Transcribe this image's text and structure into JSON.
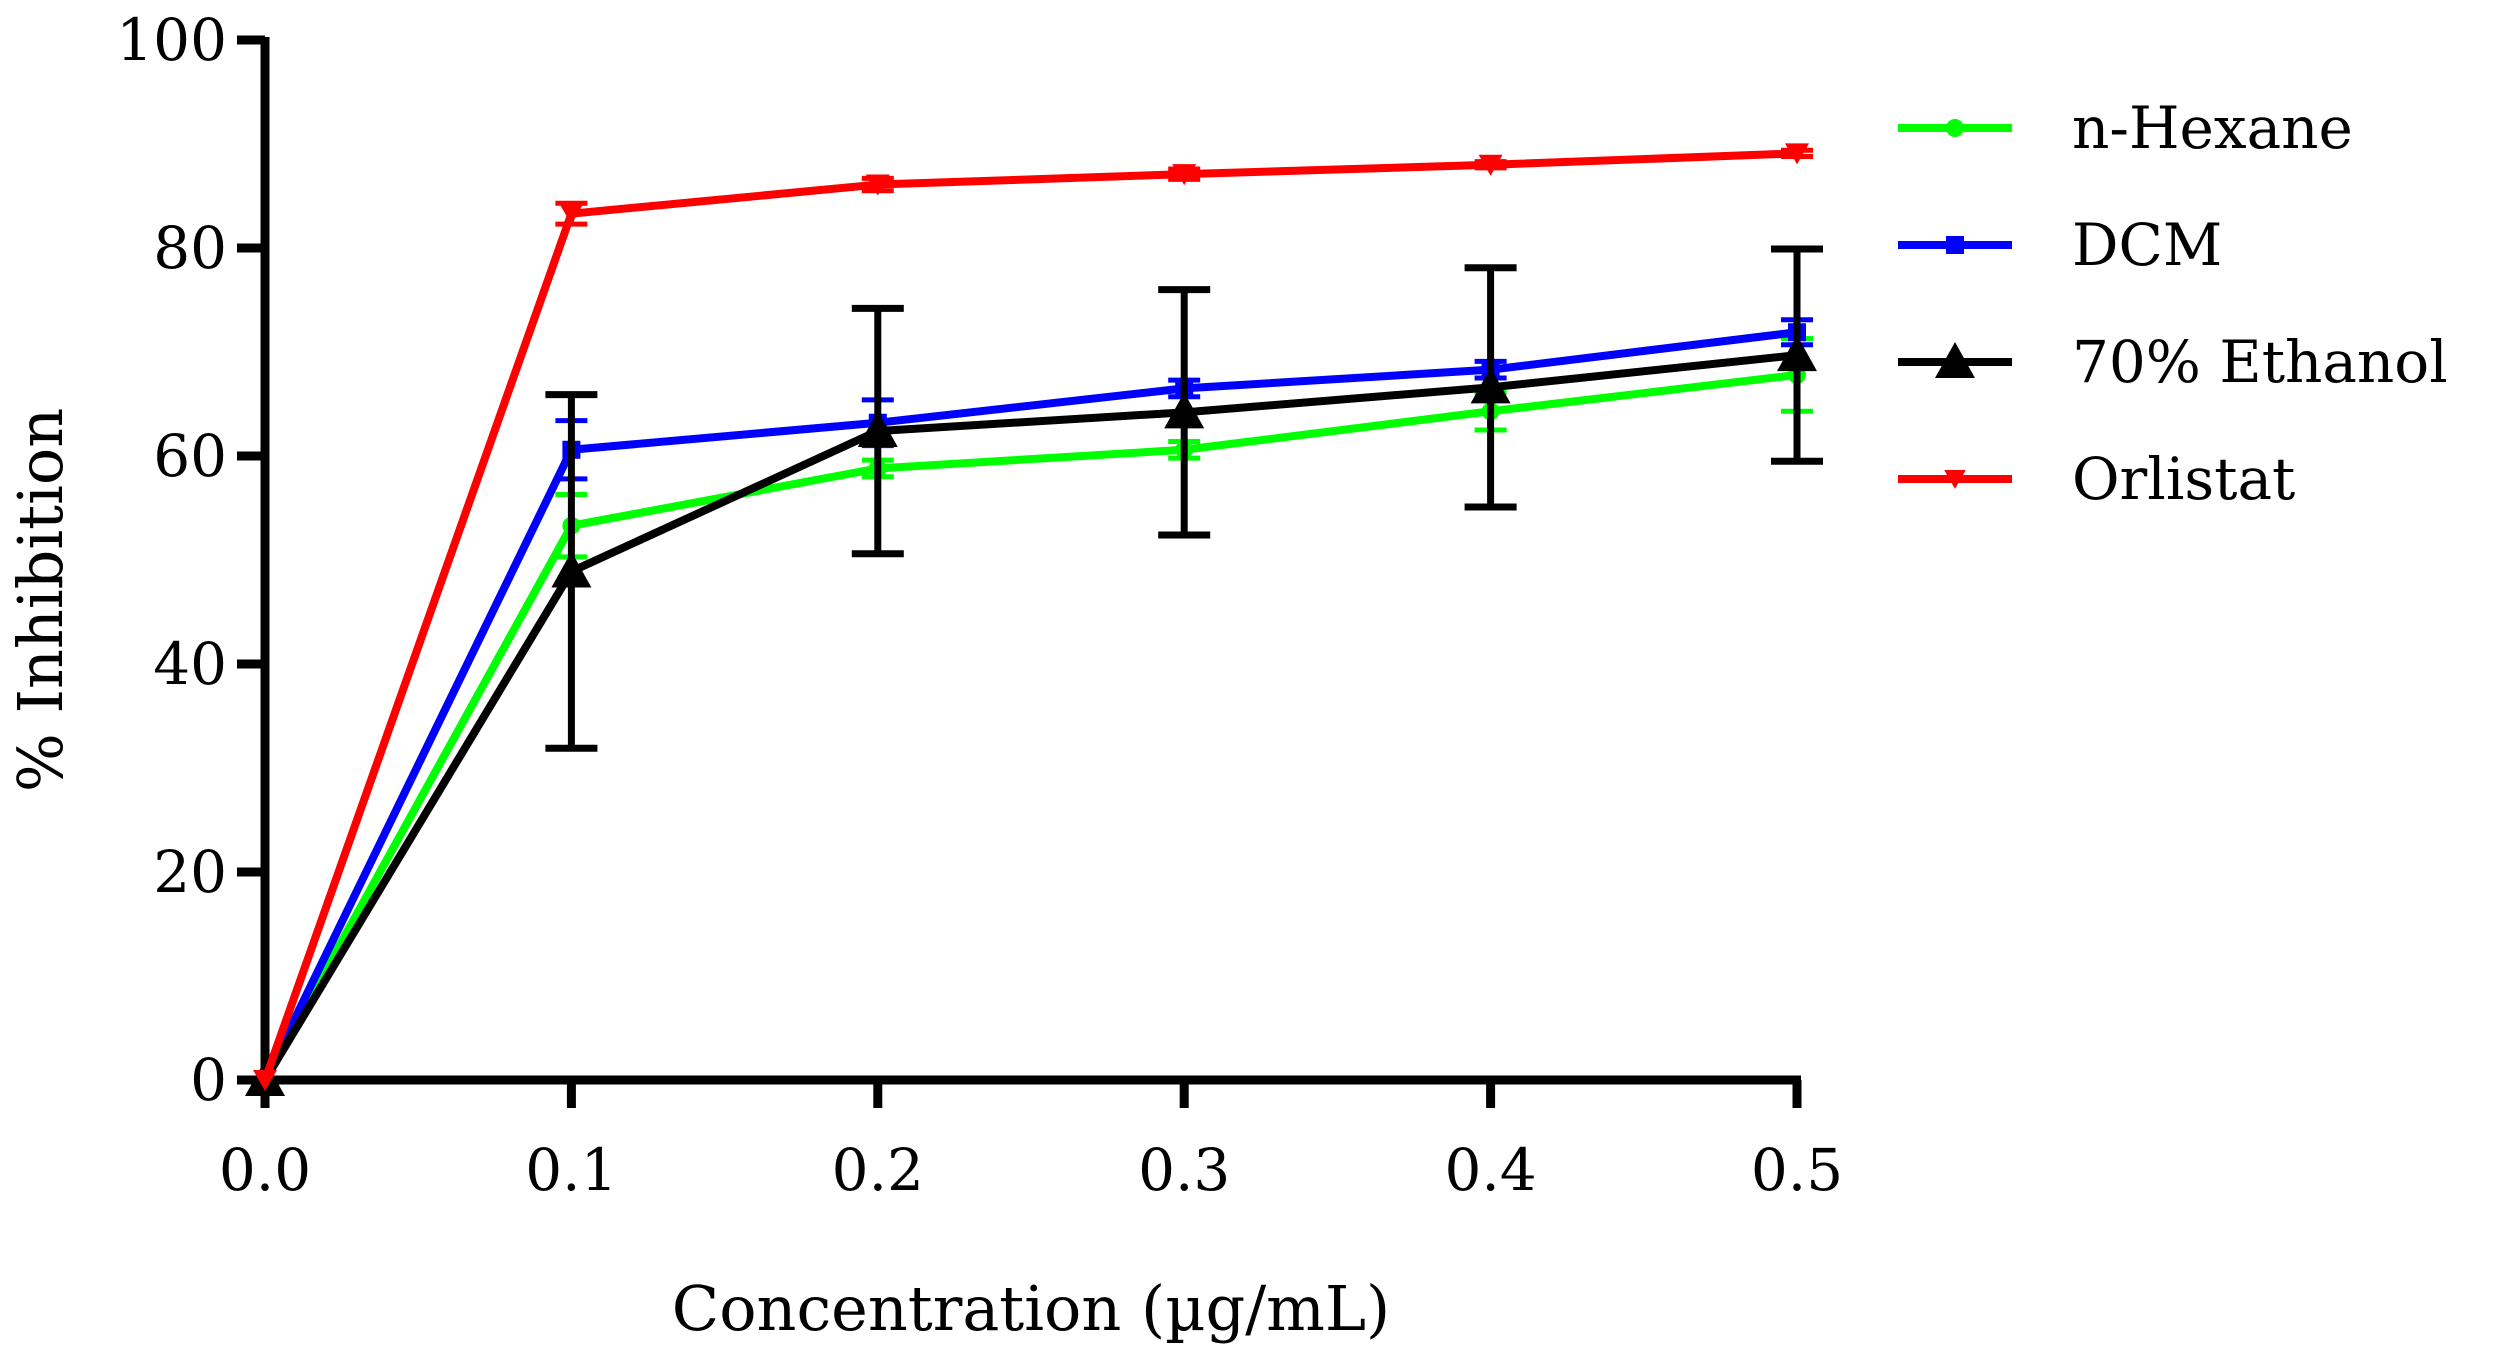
{
  "chart_data": {
    "type": "line",
    "xlabel": "Concentration (µg/mL)",
    "ylabel": "% Inhibition",
    "xlim": [
      0,
      0.5
    ],
    "ylim": [
      0,
      100
    ],
    "x_ticks": [
      "0.0",
      "0.1",
      "0.2",
      "0.3",
      "0.4",
      "0.5"
    ],
    "y_ticks": [
      "0",
      "20",
      "40",
      "60",
      "80",
      "100"
    ],
    "grid": false,
    "legend_position": "right",
    "x": [
      0,
      0.1,
      0.2,
      0.3,
      0.4,
      0.5
    ],
    "series": [
      {
        "name": "n-Hexane",
        "color": "#00ff00",
        "marker": "circle",
        "values": [
          0,
          53.3,
          58.8,
          60.6,
          64.3,
          67.8
        ],
        "errors": [
          0,
          3.0,
          0.8,
          0.8,
          1.8,
          3.5
        ]
      },
      {
        "name": "DCM",
        "color": "#0000ff",
        "marker": "square",
        "values": [
          0,
          60.6,
          63.2,
          66.5,
          68.3,
          71.9
        ],
        "errors": [
          0,
          2.8,
          2.2,
          0.8,
          0.8,
          1.2
        ]
      },
      {
        "name": "70% Ethanol",
        "color": "#000000",
        "marker": "triangle-up",
        "values": [
          0,
          48.9,
          62.4,
          64.2,
          66.6,
          69.7
        ],
        "errors": [
          0,
          17.0,
          11.8,
          11.8,
          11.5,
          10.2
        ]
      },
      {
        "name": "Orlistat",
        "color": "#ff0000",
        "marker": "triangle-down",
        "values": [
          0,
          83.3,
          86.1,
          87.1,
          88.0,
          89.1
        ],
        "errors": [
          0,
          1.0,
          0.6,
          0.5,
          0.3,
          0.3
        ]
      }
    ]
  }
}
